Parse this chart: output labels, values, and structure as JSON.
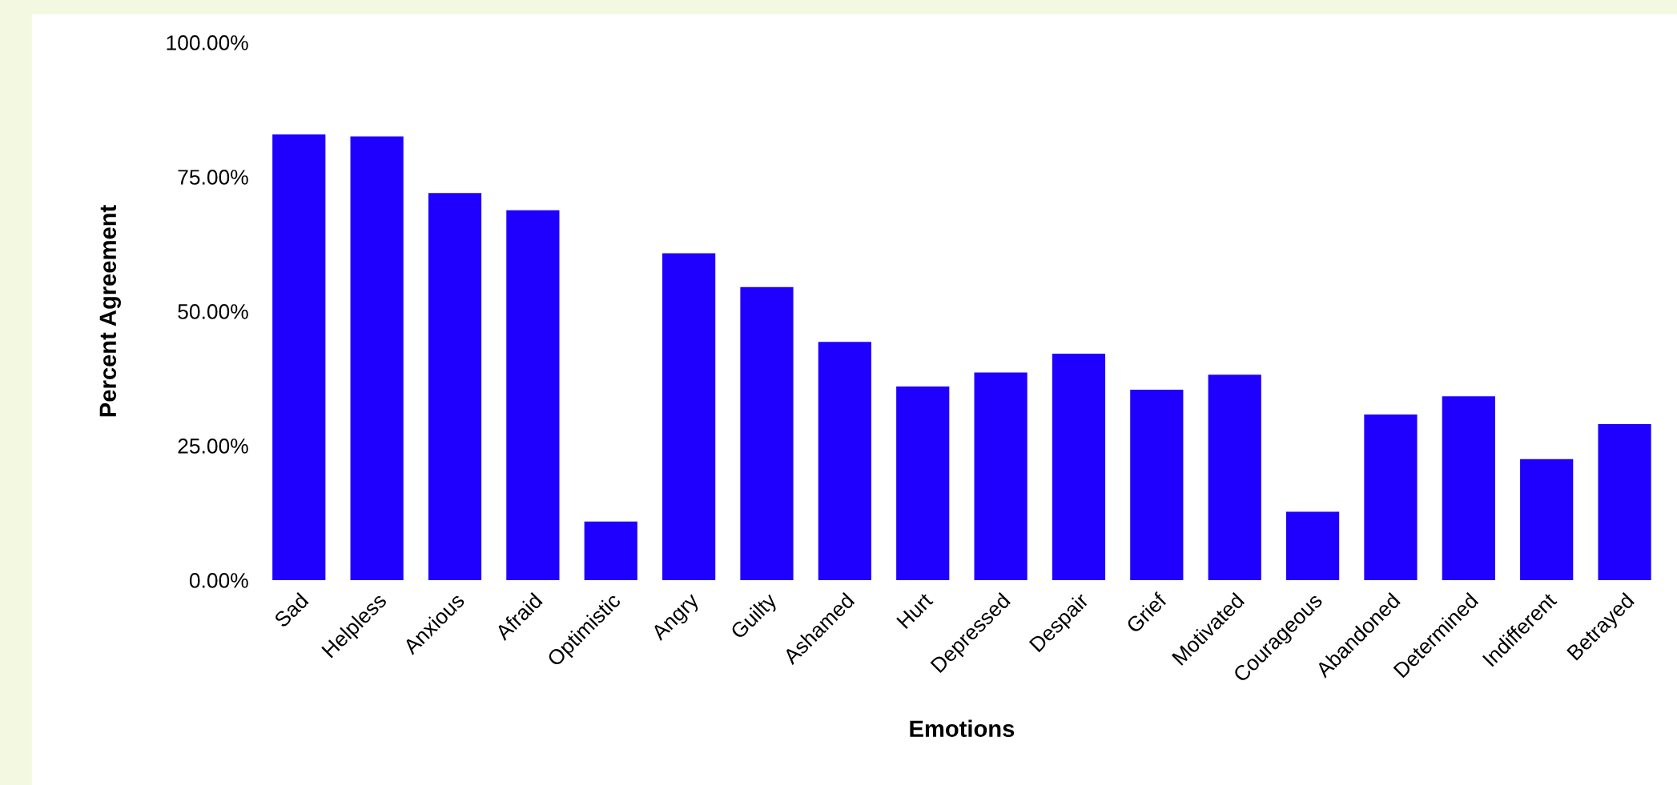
{
  "chart_data": {
    "type": "bar",
    "xlabel": "Emotions",
    "ylabel": "Percent Agreement",
    "categories": [
      "Sad",
      "Helpless",
      "Anxious",
      "Afraid",
      "Optimistic",
      "Angry",
      "Guilty",
      "Ashamed",
      "Hurt",
      "Depressed",
      "Despair",
      "Grief",
      "Motivated",
      "Courageous",
      "Abandoned",
      "Determined",
      "Indifferent",
      "Betrayed"
    ],
    "values": [
      82.9,
      82.5,
      72.0,
      68.8,
      10.9,
      60.8,
      54.5,
      44.3,
      36.0,
      38.6,
      42.1,
      35.4,
      38.2,
      12.7,
      30.8,
      34.2,
      22.5,
      29.0
    ],
    "color": "#1f00ff",
    "ylim": [
      0,
      100
    ],
    "yticks": [
      {
        "value": 0,
        "label": "0.00%"
      },
      {
        "value": 25,
        "label": "25.00%"
      },
      {
        "value": 50,
        "label": "50.00%"
      },
      {
        "value": 75,
        "label": "75.00%"
      },
      {
        "value": 100,
        "label": "100.00%"
      }
    ],
    "grid": false
  }
}
